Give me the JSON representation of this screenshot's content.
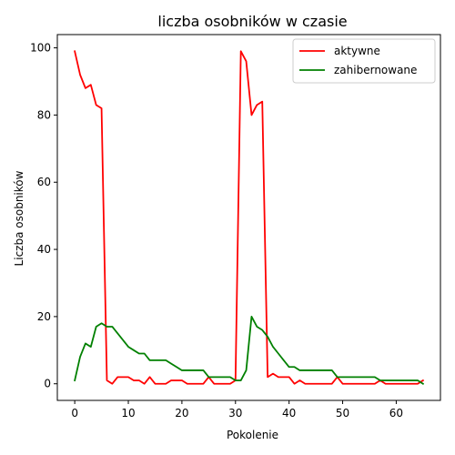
{
  "chart_data": {
    "type": "line",
    "title": "liczba osobników w czasie",
    "xlabel": "Pokolenie",
    "ylabel": "Liczba osobników",
    "xlim": [
      -3.25,
      68.25
    ],
    "ylim": [
      -4.95,
      103.95
    ],
    "xticks": [
      0,
      10,
      20,
      30,
      40,
      50,
      60
    ],
    "yticks": [
      0,
      20,
      40,
      60,
      80,
      100
    ],
    "grid": false,
    "legend_position": "top-right",
    "x": [
      0,
      1,
      2,
      3,
      4,
      5,
      6,
      7,
      8,
      9,
      10,
      11,
      12,
      13,
      14,
      15,
      16,
      17,
      18,
      19,
      20,
      21,
      22,
      23,
      24,
      25,
      26,
      27,
      28,
      29,
      30,
      31,
      32,
      33,
      34,
      35,
      36,
      37,
      38,
      39,
      40,
      41,
      42,
      43,
      44,
      45,
      46,
      47,
      48,
      49,
      50,
      51,
      52,
      53,
      54,
      55,
      56,
      57,
      58,
      59,
      60,
      61,
      62,
      63,
      64,
      65
    ],
    "series": [
      {
        "name": "aktywne",
        "color": "#ff0000",
        "values": [
          99,
          92,
          88,
          89,
          83,
          82,
          1,
          0,
          2,
          2,
          2,
          1,
          1,
          0,
          2,
          0,
          0,
          0,
          1,
          1,
          1,
          0,
          0,
          0,
          0,
          2,
          0,
          0,
          0,
          0,
          1,
          99,
          96,
          80,
          83,
          84,
          2,
          3,
          2,
          2,
          2,
          0,
          1,
          0,
          0,
          0,
          0,
          0,
          0,
          2,
          0,
          0,
          0,
          0,
          0,
          0,
          0,
          1,
          0,
          0,
          0,
          0,
          0,
          0,
          0,
          1
        ]
      },
      {
        "name": "zahibernowane",
        "color": "#008000",
        "values": [
          1,
          8,
          12,
          11,
          17,
          18,
          17,
          17,
          15,
          13,
          11,
          10,
          9,
          9,
          7,
          7,
          7,
          7,
          6,
          5,
          4,
          4,
          4,
          4,
          4,
          2,
          2,
          2,
          2,
          2,
          1,
          1,
          4,
          20,
          17,
          16,
          14,
          11,
          9,
          7,
          5,
          5,
          4,
          4,
          4,
          4,
          4,
          4,
          4,
          2,
          2,
          2,
          2,
          2,
          2,
          2,
          2,
          1,
          1,
          1,
          1,
          1,
          1,
          1,
          1,
          0
        ]
      }
    ]
  }
}
